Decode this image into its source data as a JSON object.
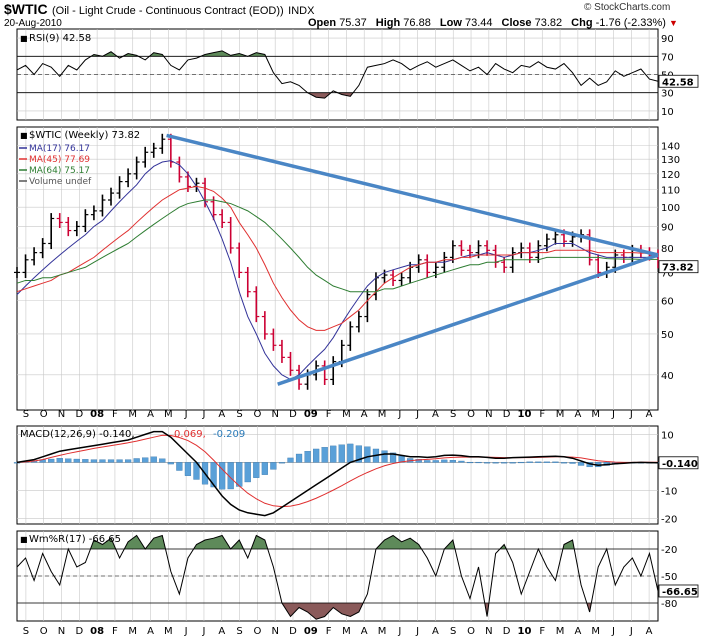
{
  "header": {
    "symbol": "$WTIC",
    "name": "(Oil - Light Crude - Continuous Contract (EOD))",
    "exchange": "INDX",
    "date": "20-Aug-2010",
    "open_label": "Open",
    "open": "75.37",
    "high_label": "High",
    "high": "76.88",
    "low_label": "Low",
    "low": "73.44",
    "close_label": "Close",
    "close": "73.82",
    "chg_label": "Chg",
    "chg": "-1.76 (-2.33%)",
    "watermark": "© StockCharts.com"
  },
  "colors": {
    "up_bar": "#000000",
    "down_bar": "#cc0033",
    "ma17": "#333399",
    "ma45": "#e03030",
    "ma64": "#2e7d32",
    "trendline": "#4a86c5",
    "fill_high": "#5e8a5a",
    "fill_low": "#8a5a5a",
    "macd_hist": "#5aa0d8",
    "grid": "#c8c8c8",
    "chg_negative": "#cc0000"
  },
  "chart_data": [
    {
      "type": "line",
      "panel": "rsi",
      "legend": "RSI(9) 42.58",
      "value_label": "42.58",
      "ylim": [
        0,
        100
      ],
      "ticks": [
        90,
        70,
        50,
        30,
        10
      ],
      "ticks_text": [
        "90",
        "70",
        "50",
        "30",
        "10"
      ],
      "overbought": 70,
      "oversold": 30,
      "x": [
        0,
        2,
        4,
        6,
        8,
        10,
        12,
        14,
        16,
        18,
        20,
        22,
        24,
        26,
        28,
        30,
        32,
        34,
        36,
        38,
        40,
        42,
        44,
        46,
        48,
        50,
        52,
        54,
        56,
        58,
        60,
        62,
        64,
        66,
        68,
        70,
        72,
        74,
        76,
        78,
        80,
        82,
        84,
        86,
        88,
        90,
        92,
        94,
        96,
        98,
        100,
        102,
        104,
        106,
        108,
        110,
        112,
        114,
        116,
        118,
        120,
        122,
        124,
        126,
        128,
        130,
        132,
        134,
        136,
        138,
        140,
        142,
        144,
        146,
        148,
        150
      ],
      "values": [
        55,
        60,
        50,
        62,
        58,
        48,
        60,
        55,
        66,
        72,
        70,
        75,
        68,
        73,
        71,
        66,
        74,
        72,
        60,
        55,
        66,
        68,
        72,
        74,
        76,
        71,
        73,
        70,
        74,
        72,
        52,
        40,
        42,
        38,
        30,
        25,
        24,
        32,
        28,
        26,
        38,
        58,
        60,
        62,
        66,
        62,
        55,
        60,
        64,
        58,
        62,
        66,
        60,
        54,
        58,
        50,
        62,
        56,
        52,
        60,
        58,
        64,
        58,
        56,
        62,
        52,
        38,
        46,
        38,
        42,
        54,
        48,
        52,
        56,
        45,
        42.58
      ]
    },
    {
      "type": "line",
      "panel": "price",
      "title": "$WTIC (Weekly) 73.82",
      "value_label": "73.82",
      "scale": "log",
      "ylim": [
        33,
        155
      ],
      "ticks": [
        140,
        130,
        120,
        110,
        100,
        90,
        80,
        70,
        60,
        50,
        40
      ],
      "ticks_text": [
        "140",
        "130",
        "120",
        "110",
        "100",
        "90",
        "80",
        "70",
        "60",
        "50",
        "40"
      ],
      "legend": [
        {
          "name": "MA(17) 76.17",
          "color": "#333399"
        },
        {
          "name": "MA(45) 77.69",
          "color": "#e03030"
        },
        {
          "name": "MA(64) 75.17",
          "color": "#2e7d32"
        },
        {
          "name": "Volume undef",
          "color": "#555555"
        }
      ],
      "x": [
        0,
        2,
        4,
        6,
        8,
        10,
        12,
        14,
        16,
        18,
        20,
        22,
        24,
        26,
        28,
        30,
        32,
        34,
        36,
        38,
        40,
        42,
        44,
        46,
        48,
        50,
        52,
        54,
        56,
        58,
        60,
        62,
        64,
        66,
        68,
        70,
        72,
        74,
        76,
        78,
        80,
        82,
        84,
        86,
        88,
        90,
        92,
        94,
        96,
        98,
        100,
        102,
        104,
        106,
        108,
        110,
        112,
        114,
        116,
        118,
        120,
        122,
        124,
        126,
        128,
        130,
        132,
        134,
        136,
        138,
        140,
        142,
        144,
        146,
        148,
        150
      ],
      "close": [
        70,
        75,
        78,
        82,
        94,
        92,
        88,
        90,
        96,
        98,
        104,
        108,
        115,
        120,
        128,
        135,
        138,
        145,
        128,
        118,
        112,
        114,
        103,
        96,
        92,
        80,
        70,
        63,
        55,
        50,
        47,
        44,
        41,
        38,
        40,
        42,
        39,
        43,
        47,
        52,
        55,
        62,
        68,
        69,
        67,
        68,
        72,
        75,
        70,
        72,
        76,
        81,
        79,
        78,
        81,
        79,
        74,
        72,
        78,
        80,
        76,
        81,
        84,
        86,
        83,
        85,
        86,
        75,
        70,
        72,
        77,
        76,
        79,
        78,
        77,
        73.82
      ],
      "series": [
        {
          "name": "MA(17)",
          "values": [
            62,
            65,
            68,
            71,
            74,
            77,
            80,
            83,
            86,
            90,
            93,
            98,
            103,
            108,
            113,
            120,
            125,
            128,
            129,
            126,
            120,
            112,
            103,
            94,
            84,
            74,
            63,
            55,
            50,
            45,
            42,
            40,
            39,
            40,
            42,
            44,
            46,
            49,
            53,
            57,
            61,
            65,
            68,
            70,
            71,
            72,
            73,
            73,
            74,
            74,
            74,
            75,
            76,
            77,
            77,
            78,
            77,
            76,
            77,
            78,
            78,
            79,
            80,
            82,
            82,
            82,
            80,
            78,
            77,
            76,
            76,
            76,
            76,
            76,
            76,
            76.17
          ]
        },
        {
          "name": "MA(45)",
          "values": [
            63,
            64,
            65,
            66,
            67,
            69,
            70,
            72,
            74,
            76,
            79,
            82,
            85,
            88,
            92,
            96,
            100,
            104,
            107,
            110,
            111,
            112,
            111,
            109,
            105,
            100,
            92,
            86,
            80,
            73,
            66,
            61,
            57,
            54,
            52,
            51,
            51,
            52,
            53,
            55,
            57,
            60,
            63,
            66,
            68,
            70,
            72,
            73,
            74,
            74,
            75,
            75,
            76,
            76,
            77,
            77,
            77,
            77,
            77,
            78,
            78,
            78,
            78,
            79,
            79,
            79,
            79,
            79,
            78,
            78,
            78,
            78,
            78,
            77.8,
            77.7,
            77.69
          ]
        },
        {
          "name": "MA(64)",
          "values": [
            66,
            67,
            67,
            68,
            68,
            69,
            70,
            71,
            72,
            74,
            76,
            78,
            80,
            82,
            85,
            88,
            91,
            94,
            97,
            100,
            102,
            103,
            104,
            104,
            103,
            102,
            100,
            98,
            95,
            92,
            88,
            84,
            80,
            76,
            72,
            69,
            67,
            65,
            64,
            63,
            63,
            63,
            63,
            64,
            64,
            65,
            66,
            67,
            68,
            69,
            70,
            71,
            72,
            73,
            73,
            74,
            74,
            75,
            75,
            75,
            75,
            75,
            76,
            76,
            76,
            76,
            76,
            76,
            76,
            75.5,
            75.4,
            75.3,
            75.3,
            75.2,
            75.2,
            75.17
          ]
        }
      ],
      "trendlines": [
        {
          "x": [
            35,
            150
          ],
          "values": [
            148,
            77
          ]
        },
        {
          "x": [
            61,
            150
          ],
          "values": [
            38,
            77
          ]
        }
      ]
    },
    {
      "type": "line",
      "panel": "macd",
      "legend_name": "MACD(12,26,9)",
      "legend_vals": [
        "-0.140",
        "0.069",
        "-0.209"
      ],
      "value_label": "-0.140",
      "ylim": [
        -22,
        13
      ],
      "ticks": [
        10,
        -10,
        -20
      ],
      "ticks_text": [
        "10",
        "-10",
        "-20"
      ],
      "x": [
        0,
        2,
        4,
        6,
        8,
        10,
        12,
        14,
        16,
        18,
        20,
        22,
        24,
        26,
        28,
        30,
        32,
        34,
        36,
        38,
        40,
        42,
        44,
        46,
        48,
        50,
        52,
        54,
        56,
        58,
        60,
        62,
        64,
        66,
        68,
        70,
        72,
        74,
        76,
        78,
        80,
        82,
        84,
        86,
        88,
        90,
        92,
        94,
        96,
        98,
        100,
        102,
        104,
        106,
        108,
        110,
        112,
        114,
        116,
        118,
        120,
        122,
        124,
        126,
        128,
        130,
        132,
        134,
        136,
        138,
        140,
        142,
        144,
        146,
        148,
        150
      ],
      "series": [
        {
          "name": "MACD",
          "values": [
            0,
            0.5,
            1,
            2,
            3,
            4,
            4.5,
            5,
            5.5,
            6,
            6.5,
            7,
            7.5,
            8,
            9,
            10,
            11,
            11,
            9,
            6,
            3,
            0,
            -4,
            -8,
            -12,
            -15,
            -17,
            -18,
            -18.5,
            -19,
            -18,
            -16,
            -14,
            -12,
            -10,
            -8,
            -6,
            -4,
            -2,
            0,
            1,
            2,
            2.5,
            3,
            3,
            2.5,
            2,
            2,
            1.8,
            2,
            2.5,
            2.6,
            2.4,
            2,
            2,
            1.8,
            1.5,
            1.5,
            1.7,
            1.8,
            1.9,
            2,
            2.1,
            2.2,
            2,
            1.5,
            0.5,
            -0.5,
            -1,
            -0.8,
            -0.5,
            -0.3,
            -0.1,
            0,
            -0.1,
            -0.14
          ]
        },
        {
          "name": "Signal",
          "values": [
            0,
            0.2,
            0.5,
            1,
            1.8,
            2.5,
            3.2,
            3.8,
            4.4,
            5,
            5.5,
            6,
            6.5,
            7,
            7.6,
            8.3,
            9,
            9.7,
            9.6,
            8.9,
            7.8,
            6.1,
            3.8,
            0.8,
            -2.4,
            -5.5,
            -8.4,
            -11,
            -13,
            -14.6,
            -15.5,
            -15.8,
            -15.6,
            -15,
            -14,
            -12.8,
            -11.4,
            -9.9,
            -8.3,
            -6.6,
            -5,
            -3.6,
            -2.3,
            -1.2,
            -0.4,
            0.2,
            0.6,
            0.9,
            1.1,
            1.3,
            1.6,
            1.8,
            1.9,
            1.9,
            1.9,
            1.9,
            1.8,
            1.7,
            1.7,
            1.7,
            1.7,
            1.8,
            1.9,
            2,
            2,
            1.9,
            1.6,
            1.1,
            0.6,
            0.3,
            0.1,
            0,
            0,
            0.05,
            0.07,
            0.069
          ]
        },
        {
          "name": "Histogram",
          "values": [
            0,
            0.3,
            0.5,
            1,
            1.2,
            1.5,
            1.3,
            1.2,
            1.1,
            1,
            1,
            1,
            1,
            1,
            1.4,
            1.7,
            2,
            1.3,
            -0.6,
            -2.9,
            -4.8,
            -6.1,
            -7.8,
            -8.8,
            -9.6,
            -9.5,
            -8.6,
            -7,
            -5.5,
            -4.4,
            -2.5,
            -0.2,
            1.6,
            3,
            4,
            4.8,
            5.4,
            5.9,
            6.3,
            6.6,
            6,
            5.6,
            4.8,
            4.2,
            3.4,
            2.3,
            1.4,
            1.1,
            0.7,
            0.7,
            0.9,
            0.8,
            0.5,
            0.1,
            0.1,
            -0.1,
            -0.3,
            -0.2,
            0,
            0.1,
            0.2,
            0.2,
            0.2,
            0.2,
            0,
            -0.4,
            -1.1,
            -1.6,
            -1.6,
            -1.1,
            -0.6,
            -0.3,
            -0.1,
            -0.05,
            -0.17,
            -0.209
          ]
        }
      ]
    },
    {
      "type": "line",
      "panel": "willr",
      "legend": "Wm%R(17) -66.65",
      "value_label": "-66.65",
      "ylim": [
        -100,
        0
      ],
      "ticks": [
        -20,
        -50,
        -80
      ],
      "ticks_text": [
        "-20",
        "-50",
        "-80"
      ],
      "upper": -20,
      "lower": -80,
      "x": [
        0,
        2,
        4,
        6,
        8,
        10,
        12,
        14,
        16,
        18,
        20,
        22,
        24,
        26,
        28,
        30,
        32,
        34,
        36,
        38,
        40,
        42,
        44,
        46,
        48,
        50,
        52,
        54,
        56,
        58,
        60,
        62,
        64,
        66,
        68,
        70,
        72,
        74,
        76,
        78,
        80,
        82,
        84,
        86,
        88,
        90,
        92,
        94,
        96,
        98,
        100,
        102,
        104,
        106,
        108,
        110,
        112,
        114,
        116,
        118,
        120,
        122,
        124,
        126,
        128,
        130,
        132,
        134,
        136,
        138,
        140,
        142,
        144,
        146,
        148,
        150
      ],
      "values": [
        -40,
        -30,
        -55,
        -25,
        -45,
        -60,
        -20,
        -40,
        -35,
        -10,
        -15,
        -8,
        -30,
        -12,
        -5,
        -20,
        -8,
        -5,
        -45,
        -70,
        -30,
        -15,
        -10,
        -8,
        -5,
        -20,
        -10,
        -30,
        -5,
        -10,
        -40,
        -80,
        -95,
        -85,
        -90,
        -98,
        -95,
        -85,
        -92,
        -95,
        -90,
        -70,
        -20,
        -10,
        -5,
        -12,
        -8,
        -15,
        -30,
        -50,
        -20,
        -10,
        -50,
        -75,
        -40,
        -95,
        -25,
        -15,
        -35,
        -70,
        -45,
        -20,
        -40,
        -55,
        -15,
        -10,
        -60,
        -90,
        -40,
        -20,
        -60,
        -40,
        -30,
        -50,
        -25,
        -66.65
      ]
    }
  ],
  "time_axis": {
    "labels": [
      "S",
      "O",
      "N",
      "D",
      "08",
      "F",
      "M",
      "A",
      "M",
      "J",
      "J",
      "A",
      "S",
      "O",
      "N",
      "D",
      "09",
      "F",
      "M",
      "A",
      "M",
      "J",
      "J",
      "A",
      "S",
      "O",
      "N",
      "D",
      "10",
      "F",
      "M",
      "A",
      "M",
      "J",
      "J",
      "A"
    ],
    "bold": [
      "08",
      "09",
      "10"
    ]
  }
}
